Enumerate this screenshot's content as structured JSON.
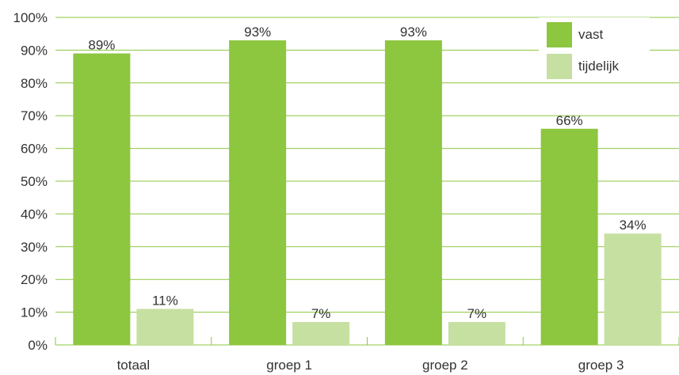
{
  "chart_data": {
    "type": "bar",
    "categories": [
      "totaal",
      "groep 1",
      "groep 2",
      "groep 3"
    ],
    "series": [
      {
        "name": "vast",
        "values": [
          89,
          93,
          93,
          66
        ],
        "color": "#8dc63f"
      },
      {
        "name": "tijdelijk",
        "values": [
          11,
          7,
          7,
          34
        ],
        "color": "#c5e0a0"
      }
    ],
    "value_labels": [
      [
        "89%",
        "93%",
        "93%",
        "66%"
      ],
      [
        "11%",
        "7%",
        "7%",
        "34%"
      ]
    ],
    "ylim": [
      0,
      100
    ],
    "yticks": [
      "0%",
      "10%",
      "20%",
      "30%",
      "40%",
      "50%",
      "60%",
      "70%",
      "80%",
      "90%",
      "100%"
    ],
    "grid": true,
    "grid_color": "#8dc63f",
    "legend_position": "top-right",
    "title": "",
    "xlabel": "",
    "ylabel": ""
  }
}
